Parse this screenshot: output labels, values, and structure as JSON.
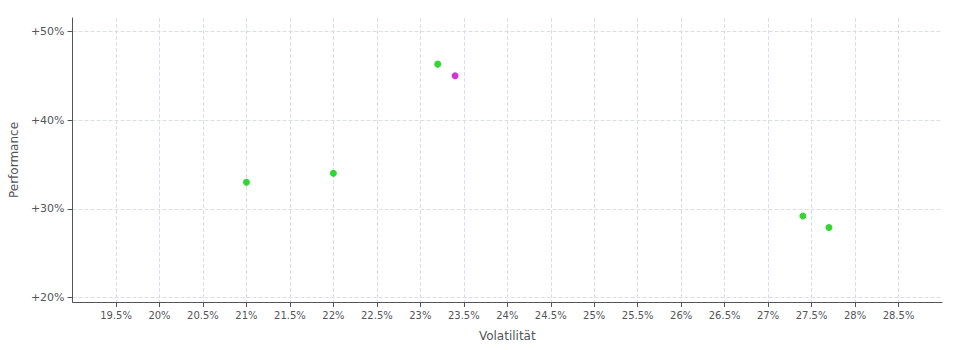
{
  "chart_data": {
    "type": "scatter",
    "xlabel": "Volatilität",
    "ylabel": "Performance",
    "x": [
      0.232,
      0.234,
      0.21,
      0.22,
      0.274,
      0.277
    ],
    "values": [
      0.463,
      0.45,
      0.33,
      0.34,
      0.292,
      0.279
    ],
    "colors": [
      "#00cc00",
      "#cc00cc",
      "#00cc00",
      "#00cc00",
      "#00cc00",
      "#00cc00"
    ],
    "xlim": [
      0.19,
      0.29
    ],
    "ylim": [
      0.195,
      0.515
    ],
    "xticks": [
      {
        "value": 0.195,
        "label": "19.5%"
      },
      {
        "value": 0.2,
        "label": "20%"
      },
      {
        "value": 0.205,
        "label": "20.5%"
      },
      {
        "value": 0.21,
        "label": "21%"
      },
      {
        "value": 0.215,
        "label": "21.5%"
      },
      {
        "value": 0.22,
        "label": "22%"
      },
      {
        "value": 0.225,
        "label": "22.5%"
      },
      {
        "value": 0.23,
        "label": "23%"
      },
      {
        "value": 0.235,
        "label": "23.5%"
      },
      {
        "value": 0.24,
        "label": "24%"
      },
      {
        "value": 0.245,
        "label": "24.5%"
      },
      {
        "value": 0.25,
        "label": "25%"
      },
      {
        "value": 0.255,
        "label": "25.5%"
      },
      {
        "value": 0.26,
        "label": "26%"
      },
      {
        "value": 0.265,
        "label": "26.5%"
      },
      {
        "value": 0.27,
        "label": "27%"
      },
      {
        "value": 0.275,
        "label": "27.5%"
      },
      {
        "value": 0.28,
        "label": "28%"
      },
      {
        "value": 0.285,
        "label": "28.5%"
      }
    ],
    "yticks": [
      {
        "value": 0.2,
        "label": "+20%"
      },
      {
        "value": 0.3,
        "label": "+30%"
      },
      {
        "value": 0.4,
        "label": "+40%"
      },
      {
        "value": 0.5,
        "label": "+50%"
      }
    ],
    "grid": true
  }
}
